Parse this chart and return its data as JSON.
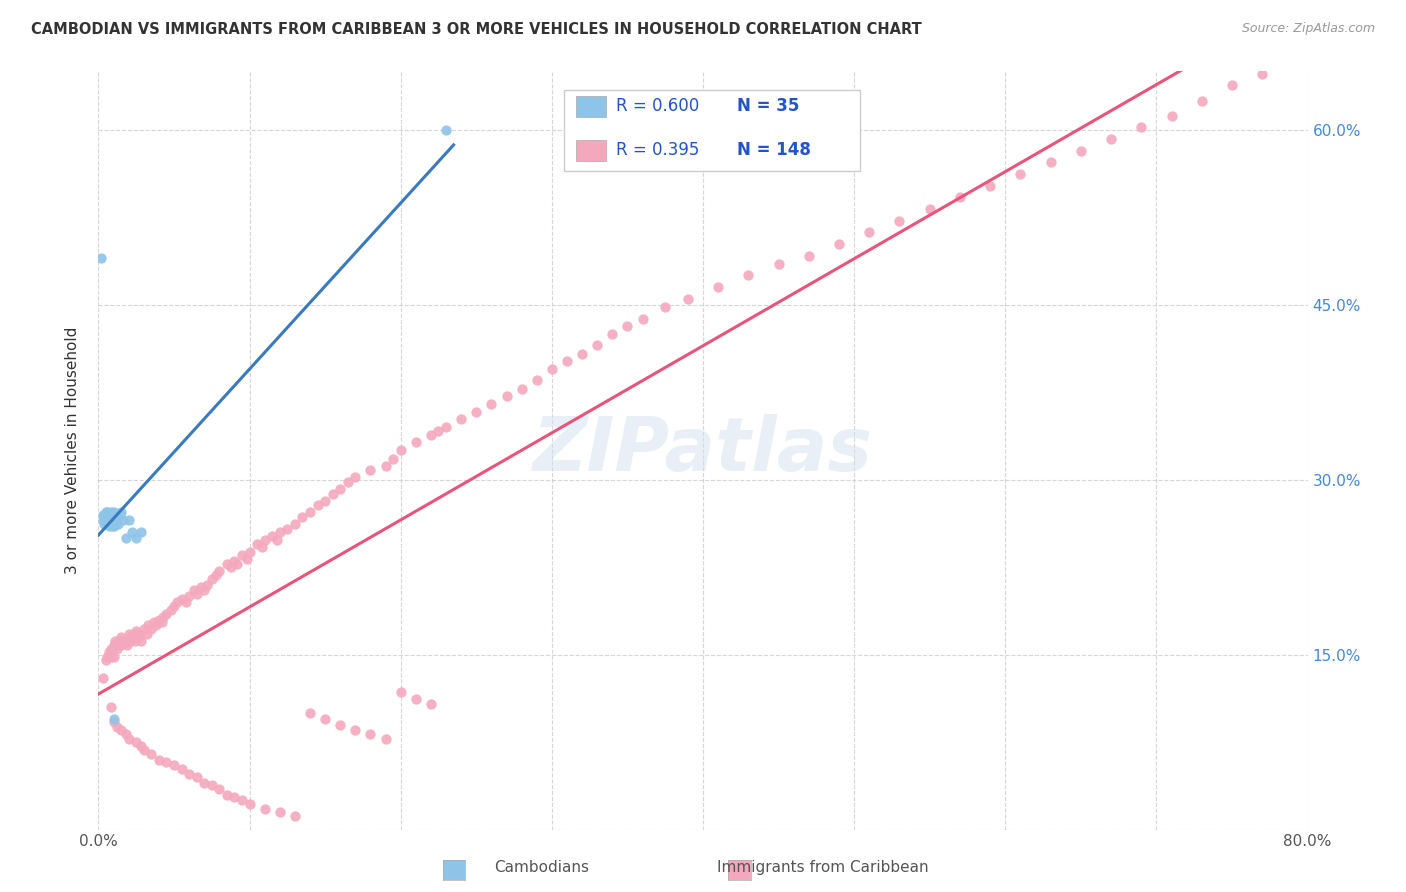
{
  "title": "CAMBODIAN VS IMMIGRANTS FROM CARIBBEAN 3 OR MORE VEHICLES IN HOUSEHOLD CORRELATION CHART",
  "source": "Source: ZipAtlas.com",
  "ylabel": "3 or more Vehicles in Household",
  "xmin": 0.0,
  "xmax": 0.8,
  "ymin": 0.0,
  "ymax": 0.65,
  "legend_R1": "0.600",
  "legend_N1": "35",
  "legend_R2": "0.395",
  "legend_N2": "148",
  "cambodian_color": "#8ec4e8",
  "caribbean_color": "#f4a8be",
  "trend_cambodian_color": "#3a7abf",
  "trend_caribbean_color": "#e8547a",
  "watermark": "ZIPatlas",
  "cam_x": [
    0.002,
    0.003,
    0.003,
    0.004,
    0.004,
    0.005,
    0.005,
    0.006,
    0.006,
    0.006,
    0.007,
    0.007,
    0.007,
    0.008,
    0.008,
    0.008,
    0.009,
    0.009,
    0.01,
    0.01,
    0.01,
    0.011,
    0.011,
    0.012,
    0.013,
    0.014,
    0.015,
    0.016,
    0.018,
    0.02,
    0.022,
    0.025,
    0.028,
    0.23,
    0.01
  ],
  "cam_y": [
    0.49,
    0.27,
    0.265,
    0.27,
    0.262,
    0.272,
    0.268,
    0.272,
    0.268,
    0.263,
    0.27,
    0.265,
    0.26,
    0.272,
    0.268,
    0.262,
    0.268,
    0.26,
    0.272,
    0.268,
    0.26,
    0.27,
    0.262,
    0.268,
    0.262,
    0.27,
    0.272,
    0.265,
    0.25,
    0.265,
    0.255,
    0.25,
    0.255,
    0.6,
    0.095
  ],
  "car_x": [
    0.003,
    0.005,
    0.006,
    0.007,
    0.008,
    0.008,
    0.009,
    0.01,
    0.01,
    0.011,
    0.012,
    0.012,
    0.013,
    0.014,
    0.015,
    0.015,
    0.016,
    0.017,
    0.018,
    0.019,
    0.02,
    0.021,
    0.022,
    0.023,
    0.024,
    0.025,
    0.026,
    0.027,
    0.028,
    0.03,
    0.032,
    0.033,
    0.035,
    0.037,
    0.038,
    0.04,
    0.042,
    0.043,
    0.045,
    0.048,
    0.05,
    0.052,
    0.055,
    0.058,
    0.06,
    0.063,
    0.065,
    0.068,
    0.07,
    0.072,
    0.075,
    0.078,
    0.08,
    0.085,
    0.088,
    0.09,
    0.092,
    0.095,
    0.098,
    0.1,
    0.105,
    0.108,
    0.11,
    0.115,
    0.118,
    0.12,
    0.125,
    0.13,
    0.135,
    0.14,
    0.145,
    0.15,
    0.155,
    0.16,
    0.165,
    0.17,
    0.18,
    0.19,
    0.195,
    0.2,
    0.21,
    0.22,
    0.225,
    0.23,
    0.24,
    0.25,
    0.26,
    0.27,
    0.28,
    0.29,
    0.3,
    0.31,
    0.32,
    0.33,
    0.34,
    0.35,
    0.36,
    0.375,
    0.39,
    0.41,
    0.43,
    0.45,
    0.47,
    0.49,
    0.51,
    0.53,
    0.55,
    0.57,
    0.59,
    0.61,
    0.63,
    0.65,
    0.67,
    0.69,
    0.71,
    0.73,
    0.75,
    0.77,
    0.008,
    0.01,
    0.012,
    0.015,
    0.018,
    0.02,
    0.025,
    0.028,
    0.03,
    0.035,
    0.04,
    0.045,
    0.05,
    0.055,
    0.06,
    0.065,
    0.07,
    0.075,
    0.08,
    0.085,
    0.09,
    0.095,
    0.1,
    0.11,
    0.12,
    0.13,
    0.14,
    0.15,
    0.16,
    0.17,
    0.18,
    0.19,
    0.2,
    0.21,
    0.22
  ],
  "car_y": [
    0.13,
    0.145,
    0.148,
    0.152,
    0.155,
    0.148,
    0.152,
    0.158,
    0.148,
    0.162,
    0.155,
    0.16,
    0.158,
    0.162,
    0.165,
    0.158,
    0.162,
    0.16,
    0.162,
    0.158,
    0.168,
    0.162,
    0.165,
    0.168,
    0.162,
    0.17,
    0.165,
    0.168,
    0.162,
    0.172,
    0.168,
    0.175,
    0.172,
    0.178,
    0.175,
    0.18,
    0.178,
    0.182,
    0.185,
    0.188,
    0.192,
    0.195,
    0.198,
    0.195,
    0.2,
    0.205,
    0.202,
    0.208,
    0.205,
    0.21,
    0.215,
    0.218,
    0.222,
    0.228,
    0.225,
    0.23,
    0.228,
    0.235,
    0.232,
    0.238,
    0.245,
    0.242,
    0.248,
    0.252,
    0.248,
    0.255,
    0.258,
    0.262,
    0.268,
    0.272,
    0.278,
    0.282,
    0.288,
    0.292,
    0.298,
    0.302,
    0.308,
    0.312,
    0.318,
    0.325,
    0.332,
    0.338,
    0.342,
    0.345,
    0.352,
    0.358,
    0.365,
    0.372,
    0.378,
    0.385,
    0.395,
    0.402,
    0.408,
    0.415,
    0.425,
    0.432,
    0.438,
    0.448,
    0.455,
    0.465,
    0.475,
    0.485,
    0.492,
    0.502,
    0.512,
    0.522,
    0.532,
    0.542,
    0.552,
    0.562,
    0.572,
    0.582,
    0.592,
    0.602,
    0.612,
    0.625,
    0.638,
    0.648,
    0.105,
    0.092,
    0.088,
    0.085,
    0.082,
    0.078,
    0.075,
    0.072,
    0.068,
    0.065,
    0.06,
    0.058,
    0.055,
    0.052,
    0.048,
    0.045,
    0.04,
    0.038,
    0.035,
    0.03,
    0.028,
    0.025,
    0.022,
    0.018,
    0.015,
    0.012,
    0.1,
    0.095,
    0.09,
    0.085,
    0.082,
    0.078,
    0.118,
    0.112,
    0.108
  ]
}
